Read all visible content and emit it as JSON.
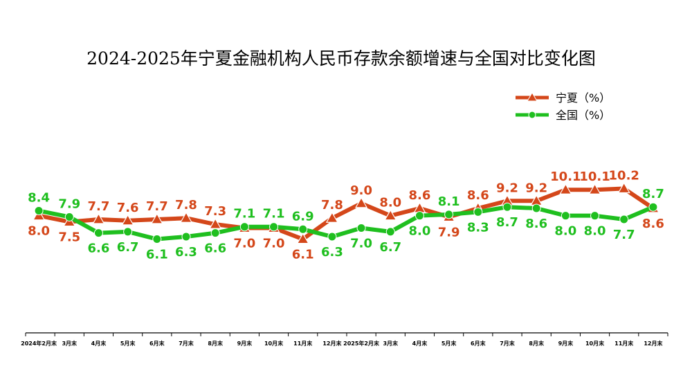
{
  "chart_data": {
    "type": "line",
    "title": "2024-2025年宁夏金融机构人民币存款余额增速与全国对比变化图",
    "categories": [
      "2024年2月末",
      "3月末",
      "4月末",
      "5月末",
      "6月末",
      "7月末",
      "8月末",
      "9月末",
      "10月末",
      "11月末",
      "12月末",
      "2025年2月末",
      "3月末",
      "4月末",
      "5月末",
      "6月末",
      "7月末",
      "8月末",
      "9月末",
      "10月末",
      "11月末",
      "12月末"
    ],
    "series": [
      {
        "name": "宁夏（%）",
        "color": "#d4471a",
        "marker": "triangle",
        "values": [
          8.0,
          7.5,
          7.7,
          7.6,
          7.7,
          7.8,
          7.3,
          7.0,
          7.0,
          6.1,
          7.8,
          9.0,
          8.0,
          8.6,
          7.9,
          8.6,
          9.2,
          9.2,
          10.1,
          10.1,
          10.2,
          8.6
        ],
        "labels": [
          "8.0",
          "7.5",
          "7.7",
          "7.6",
          "7.7",
          "7.8",
          "7.3",
          "7.0",
          "7.0",
          "6.1",
          "7.8",
          "9.0",
          "8.0",
          "8.6",
          "7.9",
          "8.6",
          "9.2",
          "9.2",
          "10.1",
          "10.1",
          "10.2",
          "8.6"
        ]
      },
      {
        "name": "全国（%）",
        "color": "#1fbf1f",
        "marker": "circle",
        "values": [
          8.4,
          7.9,
          6.6,
          6.7,
          6.1,
          6.3,
          6.6,
          7.1,
          7.1,
          6.9,
          6.3,
          7.0,
          6.7,
          8.0,
          8.1,
          8.3,
          8.7,
          8.6,
          8.0,
          8.0,
          7.7,
          8.7
        ],
        "labels": [
          "8.4",
          "7.9",
          "6.6",
          "6.7",
          "6.1",
          "6.3",
          "6.6",
          "7.1",
          "7.1",
          "6.9",
          "6.3",
          "7.0",
          "6.7",
          "8.0",
          "8.1",
          "8.3",
          "8.7",
          "8.6",
          "8.0",
          "8.0",
          "7.7",
          "8.7"
        ]
      }
    ],
    "xlabel": "",
    "ylabel": "",
    "ylim": [
      -1.5,
      15.5
    ],
    "grid": false,
    "legend": "top-right"
  }
}
